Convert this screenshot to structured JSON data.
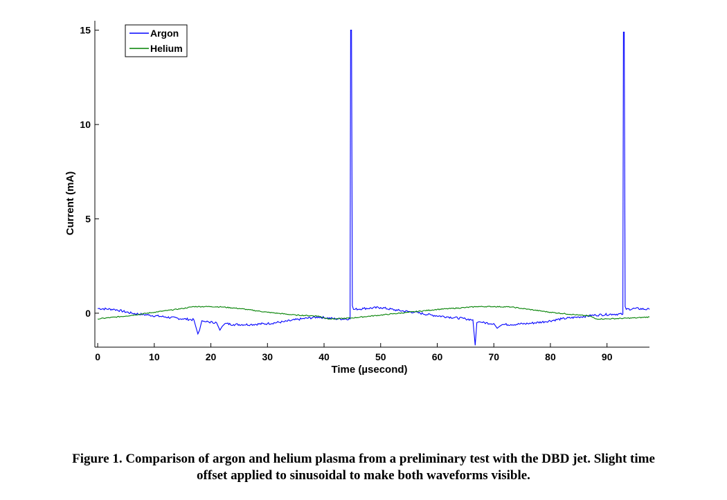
{
  "chart_data": {
    "type": "line",
    "xlabel": "Time (µsecond)",
    "ylabel": "Current (mA)",
    "xlim": [
      -0.5,
      97.5
    ],
    "ylim": [
      -1.8,
      15.5
    ],
    "xticks": [
      0,
      10,
      20,
      30,
      40,
      50,
      60,
      70,
      80,
      90
    ],
    "yticks": [
      0,
      5,
      10,
      15
    ],
    "grid": false,
    "legend_position": "top-left",
    "series": [
      {
        "name": "Argon",
        "color": "#0000ff",
        "x": [
          0,
          3,
          6,
          9,
          12,
          15,
          17,
          17.7,
          18,
          18.4,
          19,
          21,
          21.6,
          22,
          22.5,
          24,
          27,
          30,
          33,
          36,
          39,
          42,
          44.6,
          44.7,
          44.85,
          45.0,
          45.2,
          47,
          50,
          53,
          56,
          59,
          62,
          65,
          66.3,
          66.7,
          67.0,
          67.4,
          68,
          70,
          70.6,
          71,
          71.5,
          73,
          76,
          79,
          82,
          85,
          88,
          91,
          92.8,
          92.9,
          93.05,
          93.2,
          93.4,
          95,
          97.5
        ],
        "y": [
          0.25,
          0.2,
          0.0,
          -0.1,
          -0.2,
          -0.3,
          -0.35,
          -1.1,
          -0.9,
          -0.4,
          -0.45,
          -0.5,
          -0.9,
          -0.7,
          -0.55,
          -0.6,
          -0.6,
          -0.55,
          -0.45,
          -0.3,
          -0.2,
          -0.3,
          -0.3,
          15.0,
          15.0,
          0.4,
          0.2,
          0.25,
          0.3,
          0.15,
          0.05,
          -0.1,
          -0.2,
          -0.3,
          -0.35,
          -1.7,
          -0.5,
          -0.45,
          -0.5,
          -0.55,
          -0.8,
          -0.7,
          -0.6,
          -0.6,
          -0.55,
          -0.45,
          -0.3,
          -0.2,
          -0.1,
          -0.05,
          -0.05,
          14.9,
          14.9,
          0.35,
          0.2,
          0.25,
          0.2
        ]
      },
      {
        "name": "Helium",
        "color": "#008000",
        "x": [
          0,
          5,
          10,
          15,
          17,
          20,
          22,
          25,
          30,
          35,
          39,
          40,
          41,
          42,
          45,
          50,
          55,
          60,
          65,
          67,
          70,
          73,
          75,
          80,
          85,
          87,
          88,
          90,
          95,
          97.5
        ],
        "y": [
          -0.3,
          -0.15,
          0.05,
          0.25,
          0.35,
          0.35,
          0.33,
          0.25,
          0.05,
          -0.1,
          -0.15,
          -0.25,
          -0.3,
          -0.3,
          -0.25,
          -0.1,
          0.05,
          0.2,
          0.3,
          0.35,
          0.35,
          0.33,
          0.25,
          0.05,
          -0.1,
          -0.15,
          -0.3,
          -0.3,
          -0.25,
          -0.2
        ]
      }
    ]
  },
  "caption": {
    "line1": "Figure 1. Comparison of argon and helium plasma from a preliminary test with the DBD jet. Slight time",
    "line2": "offset applied to sinusoidal to make both waveforms visible."
  }
}
